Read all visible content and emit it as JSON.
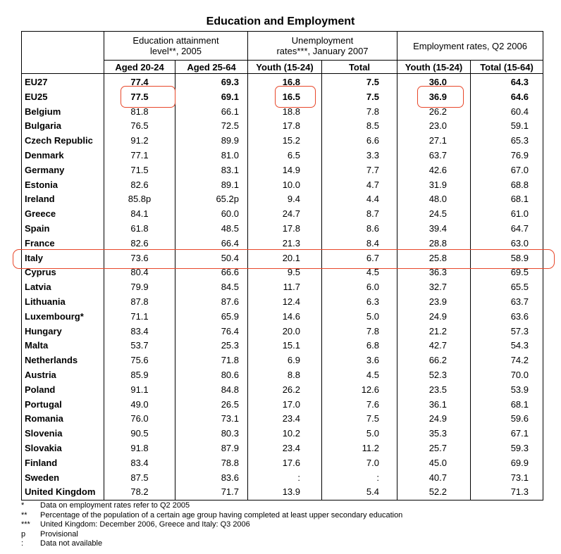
{
  "title": "Education and Employment",
  "header": {
    "groups": [
      "Education attainment level**, 2005",
      "Unemployment rates***, January 2007",
      "Employment rates, Q2 2006"
    ],
    "subcolumns": [
      "Aged 20-24",
      "Aged 25-64",
      "Youth (15-24)",
      "Total",
      "Youth (15-24)",
      "Total (15-64)"
    ]
  },
  "rows": [
    {
      "country": "EU27",
      "v": [
        "77.4",
        "69.3",
        "16.8",
        "7.5",
        "36.0",
        "64.3"
      ],
      "bold": true
    },
    {
      "country": "EU25",
      "v": [
        "77.5",
        "69.1",
        "16.5",
        "7.5",
        "36.9",
        "64.6"
      ],
      "bold": true
    },
    {
      "country": "Belgium",
      "v": [
        "81.8",
        "66.1",
        "18.8",
        "7.8",
        "26.2",
        "60.4"
      ]
    },
    {
      "country": "Bulgaria",
      "v": [
        "76.5",
        "72.5",
        "17.8",
        "8.5",
        "23.0",
        "59.1"
      ]
    },
    {
      "country": "Czech Republic",
      "v": [
        "91.2",
        "89.9",
        "15.2",
        "6.6",
        "27.1",
        "65.3"
      ]
    },
    {
      "country": "Denmark",
      "v": [
        "77.1",
        "81.0",
        "6.5",
        "3.3",
        "63.7",
        "76.9"
      ]
    },
    {
      "country": "Germany",
      "v": [
        "71.5",
        "83.1",
        "14.9",
        "7.7",
        "42.6",
        "67.0"
      ]
    },
    {
      "country": "Estonia",
      "v": [
        "82.6",
        "89.1",
        "10.0",
        "4.7",
        "31.9",
        "68.8"
      ]
    },
    {
      "country": "Ireland",
      "v": [
        "85.8p",
        "65.2p",
        "9.4",
        "4.4",
        "48.0",
        "68.1"
      ]
    },
    {
      "country": "Greece",
      "v": [
        "84.1",
        "60.0",
        "24.7",
        "8.7",
        "24.5",
        "61.0"
      ]
    },
    {
      "country": "Spain",
      "v": [
        "61.8",
        "48.5",
        "17.8",
        "8.6",
        "39.4",
        "64.7"
      ]
    },
    {
      "country": "France",
      "v": [
        "82.6",
        "66.4",
        "21.3",
        "8.4",
        "28.8",
        "63.0"
      ]
    },
    {
      "country": "Italy",
      "v": [
        "73.6",
        "50.4",
        "20.1",
        "6.7",
        "25.8",
        "58.9"
      ]
    },
    {
      "country": "Cyprus",
      "v": [
        "80.4",
        "66.6",
        "9.5",
        "4.5",
        "36.3",
        "69.5"
      ]
    },
    {
      "country": "Latvia",
      "v": [
        "79.9",
        "84.5",
        "11.7",
        "6.0",
        "32.7",
        "65.5"
      ]
    },
    {
      "country": "Lithuania",
      "v": [
        "87.8",
        "87.6",
        "12.4",
        "6.3",
        "23.9",
        "63.7"
      ]
    },
    {
      "country": "Luxembourg*",
      "v": [
        "71.1",
        "65.9",
        "14.6",
        "5.0",
        "24.9",
        "63.6"
      ]
    },
    {
      "country": "Hungary",
      "v": [
        "83.4",
        "76.4",
        "20.0",
        "7.8",
        "21.2",
        "57.3"
      ]
    },
    {
      "country": "Malta",
      "v": [
        "53.7",
        "25.3",
        "15.1",
        "6.8",
        "42.7",
        "54.3"
      ]
    },
    {
      "country": "Netherlands",
      "v": [
        "75.6",
        "71.8",
        "6.9",
        "3.6",
        "66.2",
        "74.2"
      ]
    },
    {
      "country": "Austria",
      "v": [
        "85.9",
        "80.6",
        "8.8",
        "4.5",
        "52.3",
        "70.0"
      ]
    },
    {
      "country": "Poland",
      "v": [
        "91.1",
        "84.8",
        "26.2",
        "12.6",
        "23.5",
        "53.9"
      ]
    },
    {
      "country": "Portugal",
      "v": [
        "49.0",
        "26.5",
        "17.0",
        "7.6",
        "36.1",
        "68.1"
      ]
    },
    {
      "country": "Romania",
      "v": [
        "76.0",
        "73.1",
        "23.4",
        "7.5",
        "24.9",
        "59.6"
      ]
    },
    {
      "country": "Slovenia",
      "v": [
        "90.5",
        "80.3",
        "10.2",
        "5.0",
        "35.3",
        "67.1"
      ]
    },
    {
      "country": "Slovakia",
      "v": [
        "91.8",
        "87.9",
        "23.4",
        "11.2",
        "25.7",
        "59.3"
      ]
    },
    {
      "country": "Finland",
      "v": [
        "83.4",
        "78.8",
        "17.6",
        "7.0",
        "45.0",
        "69.9"
      ]
    },
    {
      "country": "Sweden",
      "v": [
        "87.5",
        "83.6",
        ":",
        ":",
        "40.7",
        "73.1"
      ]
    },
    {
      "country": "United Kingdom",
      "v": [
        "78.2",
        "71.7",
        "13.9",
        "5.4",
        "52.2",
        "71.3"
      ]
    }
  ],
  "notes": [
    {
      "mark": "*",
      "text": "Data on employment rates refer to Q2 2005"
    },
    {
      "mark": "**",
      "text": "Percentage of the population of a certain age group having completed at least upper secondary education"
    },
    {
      "mark": "***",
      "text": "United Kingdom: December 2006, Greece and Italy: Q3 2006"
    },
    {
      "mark": "p",
      "text": "Provisional"
    },
    {
      "mark": ":",
      "text": "Data not available"
    }
  ],
  "highlight_color": "#e8472a"
}
